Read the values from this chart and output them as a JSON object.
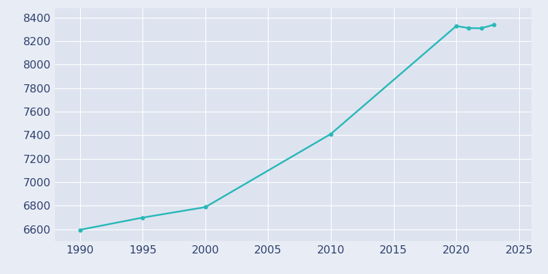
{
  "years": [
    1990,
    1995,
    2000,
    2010,
    2020,
    2021,
    2022,
    2023
  ],
  "population": [
    6596,
    6700,
    6789,
    7411,
    8329,
    8311,
    8310,
    8340
  ],
  "line_color": "#29b8b8",
  "marker": "o",
  "marker_size": 3.5,
  "background_color": "#e8edf5",
  "plot_bg_color": "#dde4f0",
  "grid_color": "#ffffff",
  "tick_color": "#2e3f6e",
  "xlim": [
    1988,
    2026
  ],
  "ylim": [
    6500,
    8480
  ],
  "xticks": [
    1990,
    1995,
    2000,
    2005,
    2010,
    2015,
    2020,
    2025
  ],
  "yticks": [
    6600,
    6800,
    7000,
    7200,
    7400,
    7600,
    7800,
    8000,
    8200,
    8400
  ],
  "line_width": 1.8,
  "tick_fontsize": 11.5
}
